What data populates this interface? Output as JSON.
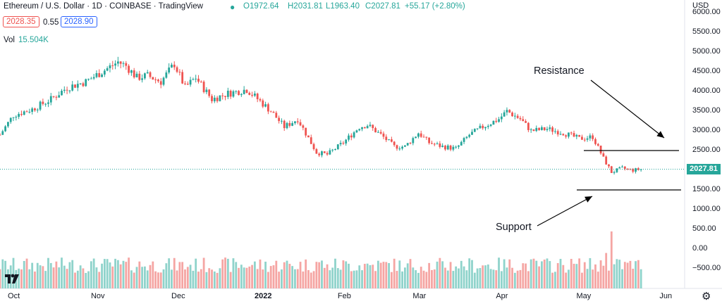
{
  "header": {
    "symbol": "Ethereum / U.S. Dollar · 1D · COINBASE · TradingView",
    "o": "O1972.64",
    "h": "H2031.81",
    "l": "L1963.40",
    "c": "C2027.81",
    "chg": "+55.17 (+2.80%)",
    "sell_price": "2028.35",
    "spread": "0.55",
    "buy_price": "2028.90",
    "vol_label": "Vol",
    "vol_value": "15.504K",
    "currency": "USD"
  },
  "colors": {
    "up": "#26a69a",
    "down": "#ef5350",
    "vol_up": "#8fd3cb",
    "vol_down": "#f5a5a3",
    "text": "#131722",
    "grid": "#f0f3fa"
  },
  "y_ticks": [
    "6000.00",
    "5500.00",
    "5000.00",
    "4500.00",
    "4000.00",
    "3500.00",
    "3000.00",
    "2500.00",
    "2000.00",
    "1500.00",
    "1000.00",
    "500.00",
    "0.00",
    "−500.00"
  ],
  "x_ticks": [
    "Oct",
    "Nov",
    "Dec",
    "2022",
    "Feb",
    "Mar",
    "Apr",
    "May",
    "Jun"
  ],
  "price_tag": "2027.81",
  "annotations": {
    "resistance": "Resistance",
    "support": "Support"
  },
  "chart_data": {
    "type": "candlestick",
    "title": "Ethereum / U.S. Dollar · 1D · COINBASE",
    "y_axis": {
      "label": "USD",
      "range": [
        -750,
        6200
      ]
    },
    "x_range": [
      "2021-09-26",
      "2022-06-08"
    ],
    "resistance_level": 2500,
    "support_level": 1500,
    "last_price": 2027.81,
    "anchors": [
      [
        "2021-09-26",
        2900
      ],
      [
        "2021-10-01",
        3400
      ],
      [
        "2021-10-08",
        3550
      ],
      [
        "2021-10-15",
        3800
      ],
      [
        "2021-10-21",
        4100
      ],
      [
        "2021-10-28",
        4250
      ],
      [
        "2021-11-03",
        4500
      ],
      [
        "2021-11-09",
        4750
      ],
      [
        "2021-11-12",
        4650
      ],
      [
        "2021-11-16",
        4350
      ],
      [
        "2021-11-20",
        4400
      ],
      [
        "2021-11-25",
        4250
      ],
      [
        "2021-11-30",
        4700
      ],
      [
        "2021-12-04",
        4100
      ],
      [
        "2021-12-08",
        4350
      ],
      [
        "2021-12-14",
        3800
      ],
      [
        "2021-12-20",
        3950
      ],
      [
        "2021-12-27",
        4050
      ],
      [
        "2022-01-01",
        3750
      ],
      [
        "2022-01-05",
        3500
      ],
      [
        "2022-01-10",
        3100
      ],
      [
        "2022-01-15",
        3300
      ],
      [
        "2022-01-22",
        2450
      ],
      [
        "2022-01-26",
        2400
      ],
      [
        "2022-02-01",
        2700
      ],
      [
        "2022-02-07",
        3100
      ],
      [
        "2022-02-10",
        3150
      ],
      [
        "2022-02-15",
        2900
      ],
      [
        "2022-02-20",
        2600
      ],
      [
        "2022-02-24",
        2600
      ],
      [
        "2022-03-01",
        2950
      ],
      [
        "2022-03-05",
        2700
      ],
      [
        "2022-03-10",
        2600
      ],
      [
        "2022-03-15",
        2550
      ],
      [
        "2022-03-20",
        2900
      ],
      [
        "2022-03-25",
        3100
      ],
      [
        "2022-03-31",
        3300
      ],
      [
        "2022-04-03",
        3500
      ],
      [
        "2022-04-08",
        3300
      ],
      [
        "2022-04-12",
        3000
      ],
      [
        "2022-04-18",
        3050
      ],
      [
        "2022-04-24",
        2950
      ],
      [
        "2022-04-30",
        2800
      ],
      [
        "2022-05-05",
        2850
      ],
      [
        "2022-05-09",
        2300
      ],
      [
        "2022-05-12",
        1950
      ],
      [
        "2022-05-16",
        2050
      ],
      [
        "2022-05-20",
        2000
      ],
      [
        "2022-05-23",
        2028
      ]
    ],
    "volume_spikes": [
      [
        "2021-12-04",
        300
      ],
      [
        "2022-01-22",
        420
      ],
      [
        "2022-01-24",
        440
      ],
      [
        "2022-01-26",
        380
      ],
      [
        "2022-02-24",
        330
      ],
      [
        "2022-03-07",
        300
      ],
      [
        "2022-05-10",
        560
      ],
      [
        "2022-05-12",
        900
      ]
    ]
  }
}
